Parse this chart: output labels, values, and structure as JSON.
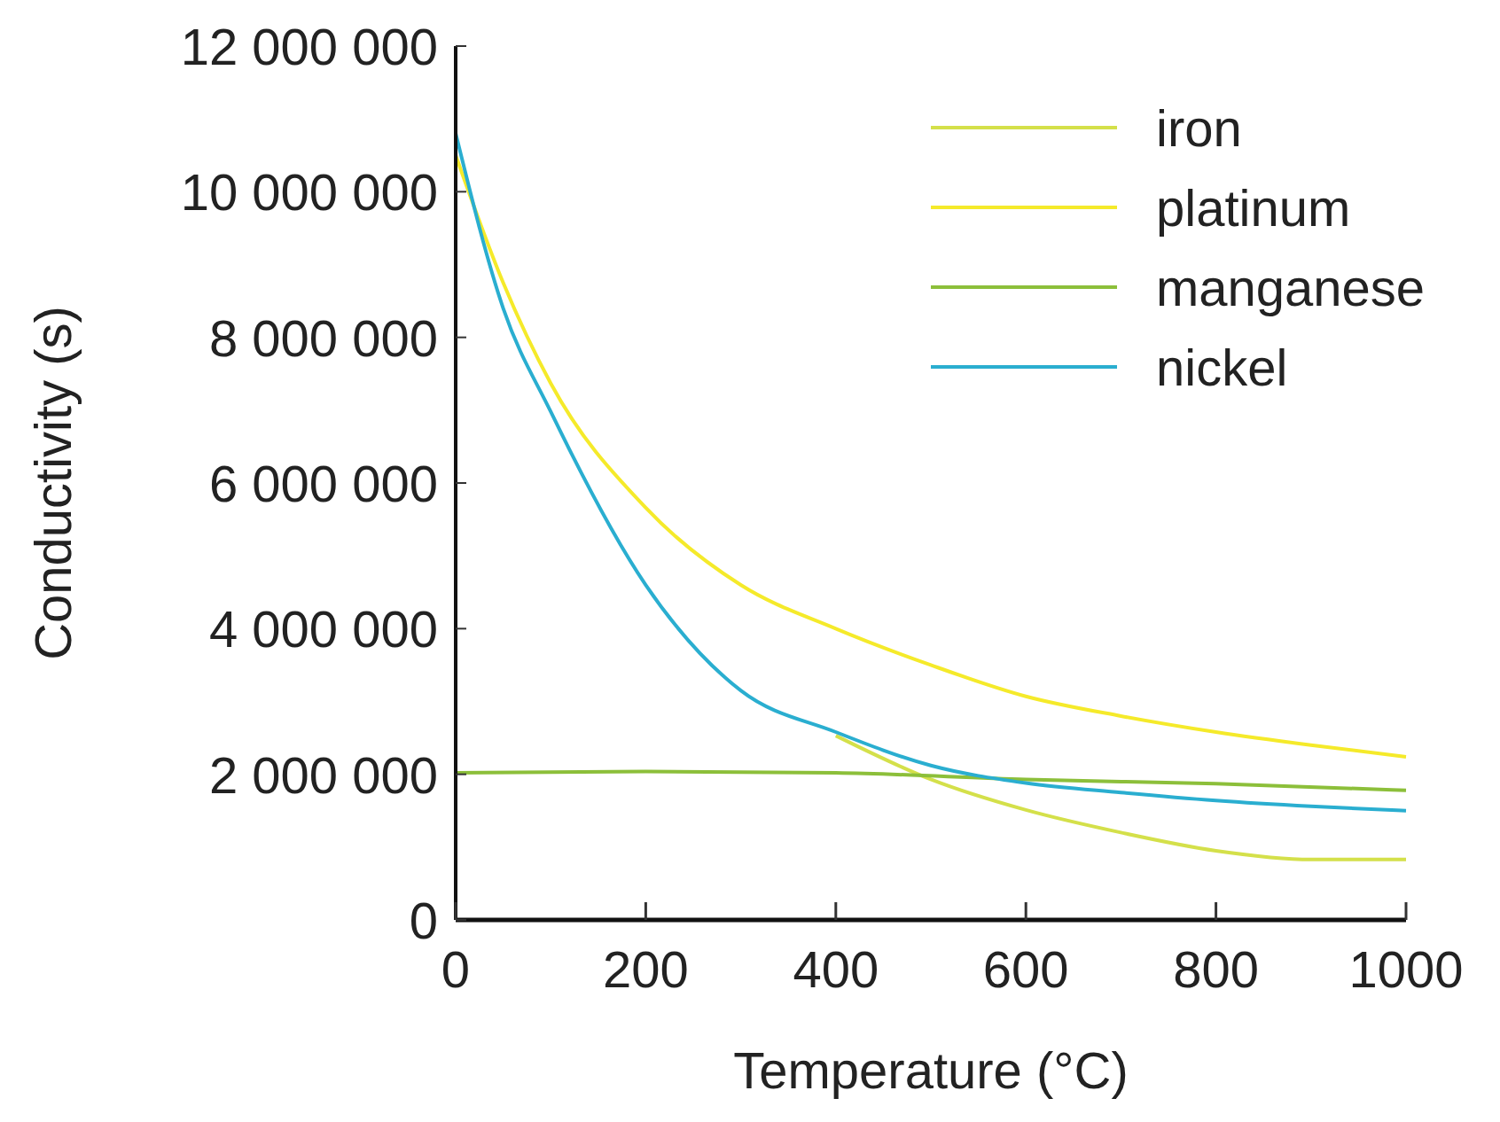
{
  "chart_data": {
    "type": "line",
    "xlabel": "Temperature (°C)",
    "ylabel": "Conductivity (s)",
    "xlim": [
      0,
      1000
    ],
    "xticks": [
      0,
      200,
      400,
      600,
      800,
      1000
    ],
    "ylim": [
      0,
      12000000
    ],
    "yticks": [
      0,
      {
        "value": 2000000,
        "label": "2 000 000"
      },
      {
        "value": 4000000,
        "label": "4 000 000"
      },
      {
        "value": 6000000,
        "label": "6 000 000"
      },
      {
        "value": 8000000,
        "label": "8 000 000"
      },
      {
        "value": 10000000,
        "label": "10 000 000"
      },
      {
        "value": 12000000,
        "label": "12 000 000"
      }
    ],
    "legend": "top right",
    "grid": false,
    "marker": "none",
    "line_style": "solid",
    "series": [
      {
        "name": "iron",
        "color": "#d4e04a",
        "x": [
          400,
          500,
          600,
          700,
          800,
          900,
          1000
        ],
        "values": [
          2530000,
          1930000,
          1510000,
          1200000,
          950000,
          830000,
          830000
        ]
      },
      {
        "name": "platinum",
        "color": "#f5ea2a",
        "x": [
          0,
          50,
          100,
          200,
          300,
          400,
          500,
          600,
          700,
          800,
          900,
          1000
        ],
        "values": [
          10500000,
          8750000,
          7370000,
          5660000,
          4600000,
          4000000,
          3500000,
          3070000,
          2800000,
          2580000,
          2400000,
          2240000
        ]
      },
      {
        "name": "manganese",
        "color": "#8cbf3a",
        "x": [
          0,
          200,
          400,
          600,
          800,
          1000
        ],
        "values": [
          2020000,
          2040000,
          2020000,
          1930000,
          1870000,
          1780000
        ]
      },
      {
        "name": "nickel",
        "color": "#2aaed0",
        "x": [
          0,
          50,
          100,
          200,
          300,
          400,
          500,
          600,
          700,
          800,
          900,
          1000
        ],
        "values": [
          10800000,
          8400000,
          6980000,
          4600000,
          3150000,
          2580000,
          2120000,
          1880000,
          1750000,
          1640000,
          1560000,
          1500000
        ]
      }
    ]
  }
}
